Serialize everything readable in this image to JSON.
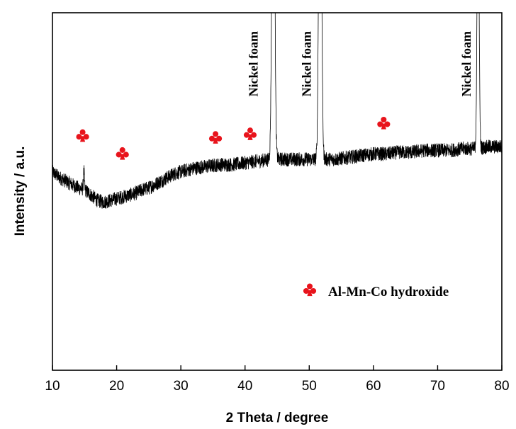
{
  "chart_data": {
    "type": "line",
    "title": "",
    "xlabel": "2 Theta / degree",
    "ylabel": "Intensity / a.u.",
    "xlim": [
      10,
      80
    ],
    "x_ticks": [
      10,
      20,
      30,
      40,
      50,
      60,
      70,
      80
    ],
    "y_ticks_shown": false,
    "grid": false,
    "colors": {
      "trace": "#000000",
      "marker": "#e8141c"
    },
    "series": [
      {
        "name": "",
        "baseline_profile": [
          [
            10,
            0.555
          ],
          [
            11,
            0.54
          ],
          [
            12,
            0.53
          ],
          [
            13,
            0.52
          ],
          [
            14,
            0.51
          ],
          [
            15,
            0.505
          ],
          [
            16,
            0.49
          ],
          [
            17,
            0.475
          ],
          [
            18,
            0.47
          ],
          [
            19,
            0.475
          ],
          [
            20,
            0.48
          ],
          [
            21,
            0.485
          ],
          [
            22,
            0.49
          ],
          [
            23,
            0.495
          ],
          [
            24,
            0.505
          ],
          [
            25,
            0.51
          ],
          [
            26,
            0.52
          ],
          [
            27,
            0.53
          ],
          [
            28,
            0.54
          ],
          [
            29,
            0.55
          ],
          [
            30,
            0.555
          ],
          [
            32,
            0.565
          ],
          [
            34,
            0.57
          ],
          [
            36,
            0.575
          ],
          [
            38,
            0.575
          ],
          [
            40,
            0.58
          ],
          [
            42,
            0.585
          ],
          [
            44,
            0.59
          ],
          [
            46,
            0.59
          ],
          [
            48,
            0.59
          ],
          [
            50,
            0.59
          ],
          [
            52,
            0.59
          ],
          [
            54,
            0.59
          ],
          [
            56,
            0.595
          ],
          [
            58,
            0.6
          ],
          [
            60,
            0.605
          ],
          [
            62,
            0.605
          ],
          [
            64,
            0.61
          ],
          [
            66,
            0.61
          ],
          [
            68,
            0.615
          ],
          [
            70,
            0.615
          ],
          [
            72,
            0.615
          ],
          [
            74,
            0.62
          ],
          [
            76,
            0.62
          ],
          [
            78,
            0.625
          ],
          [
            80,
            0.625
          ]
        ],
        "peaks": [
          {
            "x": 44.4,
            "height": 1.2,
            "width": 0.2
          },
          {
            "x": 51.7,
            "height": 1.2,
            "width": 0.2
          },
          {
            "x": 76.3,
            "height": 0.76,
            "width": 0.15
          },
          {
            "x": 14.9,
            "height": 0.05,
            "width": 0.08
          }
        ],
        "noise_amplitude": 0.02
      }
    ],
    "annotations": [
      {
        "text": "Nickel foam",
        "x": 41.3,
        "orientation": "vertical"
      },
      {
        "text": "Nickel foam",
        "x": 49.6,
        "orientation": "vertical"
      },
      {
        "text": "Nickel foam",
        "x": 74.5,
        "orientation": "vertical"
      }
    ],
    "markers": [
      {
        "symbol": "club",
        "x": 14.7,
        "y": 0.655
      },
      {
        "symbol": "club",
        "x": 20.9,
        "y": 0.605
      },
      {
        "symbol": "club",
        "x": 35.4,
        "y": 0.65
      },
      {
        "symbol": "club",
        "x": 40.8,
        "y": 0.66
      },
      {
        "symbol": "club",
        "x": 61.6,
        "y": 0.69
      }
    ],
    "legend": {
      "placement": "center-right",
      "entries": [
        {
          "symbol": "club",
          "label": "Al-Mn-Co hydroxide"
        }
      ]
    }
  }
}
